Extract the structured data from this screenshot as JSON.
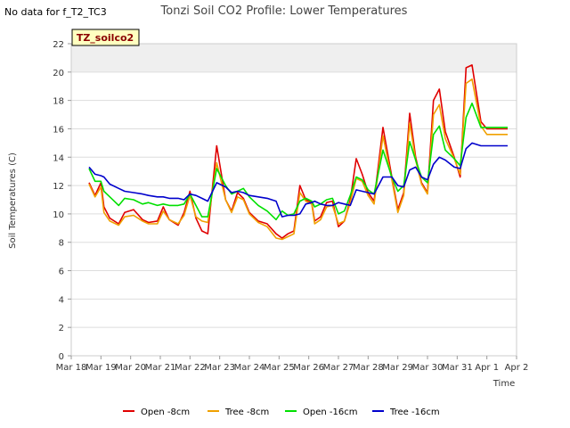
{
  "no_data_text": "No data for f_T2_TC3",
  "badge": "TZ_soilco2",
  "chart_data": {
    "type": "line",
    "title": "Tonzi Soil CO2 Profile: Lower Temperatures",
    "xlabel": "Time",
    "ylabel": "Soil Temperatures (C)",
    "ylim": [
      0,
      22
    ],
    "yticks": [
      0,
      2,
      4,
      6,
      8,
      10,
      12,
      14,
      16,
      18,
      20,
      22
    ],
    "xlim": [
      0,
      15
    ],
    "xticks": [
      0,
      1,
      2,
      3,
      4,
      5,
      6,
      7,
      8,
      9,
      10,
      11,
      12,
      13,
      14,
      15
    ],
    "xtick_labels": [
      "Mar 18",
      "Mar 19",
      "Mar 20",
      "Mar 21",
      "Mar 22",
      "Mar 23",
      "Mar 24",
      "Mar 25",
      "Mar 26",
      "Mar 27",
      "Mar 28",
      "Mar 29",
      "Mar 30",
      "Mar 31",
      "Apr 1",
      "Apr 2"
    ],
    "grid": true,
    "legend_position": "bottom",
    "series": [
      {
        "name": "Open -8cm",
        "color": "#e00000",
        "x": [
          0.6,
          0.8,
          1.0,
          1.1,
          1.3,
          1.6,
          1.8,
          2.1,
          2.4,
          2.6,
          2.9,
          3.1,
          3.3,
          3.6,
          3.8,
          4.0,
          4.2,
          4.4,
          4.6,
          4.9,
          5.2,
          5.4,
          5.6,
          5.8,
          6.0,
          6.3,
          6.6,
          6.9,
          7.1,
          7.3,
          7.5,
          7.7,
          7.9,
          8.1,
          8.2,
          8.4,
          8.6,
          8.8,
          9.0,
          9.2,
          9.4,
          9.6,
          9.8,
          10.0,
          10.2,
          10.5,
          10.8,
          11.0,
          11.2,
          11.4,
          11.6,
          11.8,
          12.0,
          12.2,
          12.4,
          12.6,
          12.9,
          13.1,
          13.3,
          13.5,
          13.8,
          14.0,
          14.3,
          14.5,
          14.7
        ],
        "values": [
          12.2,
          11.3,
          12.2,
          10.5,
          9.7,
          9.3,
          10.1,
          10.3,
          9.6,
          9.4,
          9.5,
          10.5,
          9.6,
          9.2,
          10.1,
          11.6,
          9.7,
          8.8,
          8.6,
          14.8,
          11.0,
          10.2,
          11.5,
          11.1,
          10.1,
          9.5,
          9.3,
          8.6,
          8.3,
          8.6,
          8.8,
          12.0,
          11.0,
          10.8,
          9.5,
          9.8,
          10.8,
          10.9,
          9.1,
          9.5,
          11.0,
          13.9,
          12.8,
          11.5,
          10.9,
          16.1,
          12.6,
          10.3,
          11.5,
          17.1,
          14.0,
          12.2,
          11.5,
          18.0,
          18.8,
          15.8,
          14.0,
          12.6,
          20.3,
          20.5,
          16.5,
          16.0,
          16.0,
          16.0,
          16.0
        ]
      },
      {
        "name": "Tree -8cm",
        "color": "#f0a000",
        "x": [
          0.6,
          0.8,
          1.0,
          1.1,
          1.3,
          1.6,
          1.8,
          2.1,
          2.4,
          2.6,
          2.9,
          3.1,
          3.3,
          3.6,
          3.8,
          4.0,
          4.2,
          4.4,
          4.6,
          4.9,
          5.2,
          5.4,
          5.6,
          5.8,
          6.0,
          6.3,
          6.6,
          6.9,
          7.1,
          7.3,
          7.5,
          7.7,
          7.9,
          8.1,
          8.2,
          8.4,
          8.6,
          8.8,
          9.0,
          9.2,
          9.4,
          9.6,
          9.8,
          10.0,
          10.2,
          10.5,
          10.8,
          11.0,
          11.2,
          11.4,
          11.6,
          11.8,
          12.0,
          12.2,
          12.4,
          12.6,
          12.9,
          13.1,
          13.3,
          13.5,
          13.8,
          14.0,
          14.3,
          14.5,
          14.7
        ],
        "values": [
          12.1,
          11.2,
          11.9,
          10.1,
          9.5,
          9.2,
          9.8,
          9.9,
          9.5,
          9.3,
          9.3,
          10.2,
          9.6,
          9.3,
          9.9,
          11.3,
          9.8,
          9.5,
          9.4,
          13.6,
          11.0,
          10.1,
          11.2,
          11.0,
          10.0,
          9.4,
          9.1,
          8.3,
          8.2,
          8.4,
          8.6,
          11.5,
          10.9,
          10.7,
          9.3,
          9.6,
          10.5,
          10.6,
          9.3,
          9.5,
          10.8,
          12.5,
          12.3,
          11.3,
          10.7,
          15.5,
          12.4,
          10.1,
          11.3,
          16.4,
          13.8,
          12.1,
          11.4,
          17.0,
          17.7,
          15.3,
          13.9,
          12.8,
          19.2,
          19.5,
          16.2,
          15.6,
          15.6,
          15.6,
          15.6
        ]
      },
      {
        "name": "Open -16cm",
        "color": "#00e000",
        "x": [
          0.6,
          0.8,
          1.0,
          1.1,
          1.3,
          1.6,
          1.8,
          2.1,
          2.4,
          2.6,
          2.9,
          3.1,
          3.3,
          3.6,
          3.8,
          4.0,
          4.2,
          4.4,
          4.6,
          4.9,
          5.2,
          5.4,
          5.6,
          5.8,
          6.0,
          6.3,
          6.6,
          6.9,
          7.1,
          7.3,
          7.5,
          7.7,
          7.9,
          8.1,
          8.2,
          8.4,
          8.6,
          8.8,
          9.0,
          9.2,
          9.4,
          9.6,
          9.8,
          10.0,
          10.2,
          10.5,
          10.8,
          11.0,
          11.2,
          11.4,
          11.6,
          11.8,
          12.0,
          12.2,
          12.4,
          12.6,
          12.9,
          13.1,
          13.3,
          13.5,
          13.8,
          14.0,
          14.3,
          14.5,
          14.7
        ],
        "values": [
          13.2,
          12.3,
          12.3,
          11.6,
          11.2,
          10.6,
          11.1,
          11.0,
          10.7,
          10.8,
          10.6,
          10.7,
          10.6,
          10.6,
          10.7,
          11.4,
          10.6,
          9.8,
          9.8,
          13.2,
          12.0,
          11.4,
          11.6,
          11.8,
          11.2,
          10.6,
          10.2,
          9.6,
          10.2,
          9.9,
          10.0,
          10.9,
          11.1,
          10.9,
          10.5,
          10.7,
          11.0,
          11.1,
          10.0,
          10.2,
          11.3,
          12.6,
          12.4,
          11.7,
          11.4,
          14.5,
          12.6,
          11.6,
          12.0,
          15.1,
          13.8,
          12.6,
          12.2,
          15.6,
          16.2,
          14.5,
          13.9,
          13.4,
          16.8,
          17.8,
          16.1,
          16.1,
          16.1,
          16.1,
          16.1
        ]
      },
      {
        "name": "Tree -16cm",
        "color": "#0000cc",
        "x": [
          0.6,
          0.8,
          1.0,
          1.1,
          1.3,
          1.6,
          1.8,
          2.1,
          2.4,
          2.6,
          2.9,
          3.1,
          3.3,
          3.6,
          3.8,
          4.0,
          4.2,
          4.4,
          4.6,
          4.9,
          5.2,
          5.4,
          5.6,
          5.8,
          6.0,
          6.3,
          6.6,
          6.9,
          7.1,
          7.3,
          7.5,
          7.7,
          7.9,
          8.1,
          8.2,
          8.4,
          8.6,
          8.8,
          9.0,
          9.2,
          9.4,
          9.6,
          9.8,
          10.0,
          10.2,
          10.5,
          10.8,
          11.0,
          11.2,
          11.4,
          11.6,
          11.8,
          12.0,
          12.2,
          12.4,
          12.6,
          12.9,
          13.1,
          13.3,
          13.5,
          13.8,
          14.0,
          14.3,
          14.5,
          14.7
        ],
        "values": [
          13.3,
          12.8,
          12.7,
          12.6,
          12.1,
          11.8,
          11.6,
          11.5,
          11.4,
          11.3,
          11.2,
          11.2,
          11.1,
          11.1,
          11.0,
          11.4,
          11.3,
          11.1,
          10.9,
          12.2,
          11.9,
          11.5,
          11.6,
          11.5,
          11.3,
          11.2,
          11.1,
          10.9,
          9.8,
          9.9,
          9.9,
          10.0,
          10.7,
          10.8,
          10.9,
          10.7,
          10.6,
          10.6,
          10.8,
          10.7,
          10.6,
          11.7,
          11.6,
          11.5,
          11.4,
          12.6,
          12.6,
          12.0,
          11.9,
          13.1,
          13.3,
          12.6,
          12.4,
          13.5,
          14.0,
          13.8,
          13.3,
          13.2,
          14.6,
          15.0,
          14.8,
          14.8,
          14.8,
          14.8,
          14.8
        ]
      }
    ]
  }
}
